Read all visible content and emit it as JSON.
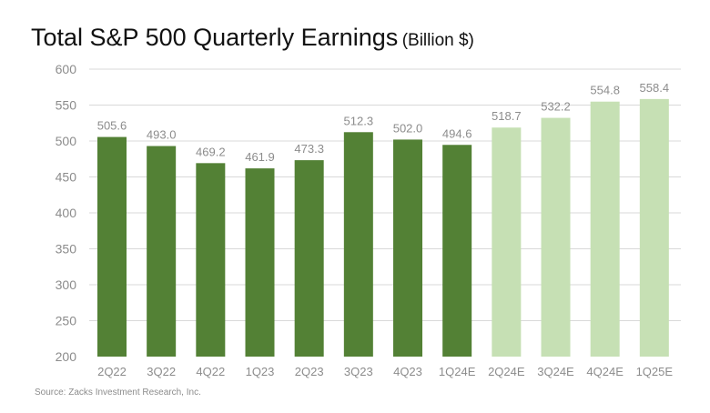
{
  "title": "Total S&P 500 Quarterly Earnings",
  "title_unit": "(Billion $)",
  "source": "Source: Zacks Investment Research, Inc.",
  "colors": {
    "actual": "#538135",
    "estimate": "#c6e0b4",
    "axis_text": "#8c8c8c",
    "gridline": "#d9d9d9"
  },
  "chart_data": {
    "type": "bar",
    "title": "Total S&P 500 Quarterly Earnings (Billion $)",
    "xlabel": "",
    "ylabel": "",
    "ylim": [
      200,
      600
    ],
    "yticks": [
      200,
      250,
      300,
      350,
      400,
      450,
      500,
      550,
      600
    ],
    "grid": true,
    "legend": "none",
    "categories": [
      "2Q22",
      "3Q22",
      "4Q22",
      "1Q23",
      "2Q23",
      "3Q23",
      "4Q23",
      "1Q24E",
      "2Q24E",
      "3Q24E",
      "4Q24E",
      "1Q25E"
    ],
    "values": [
      505.6,
      493.0,
      469.2,
      461.9,
      473.3,
      512.3,
      502.0,
      494.6,
      518.7,
      532.2,
      554.8,
      558.4
    ],
    "value_labels": [
      "505.6",
      "493.0",
      "469.2",
      "461.9",
      "473.3",
      "512.3",
      "502.0",
      "494.6",
      "518.7",
      "532.2",
      "554.8",
      "558.4"
    ],
    "bar_kind": [
      "actual",
      "actual",
      "actual",
      "actual",
      "actual",
      "actual",
      "actual",
      "actual",
      "estimate",
      "estimate",
      "estimate",
      "estimate"
    ]
  }
}
